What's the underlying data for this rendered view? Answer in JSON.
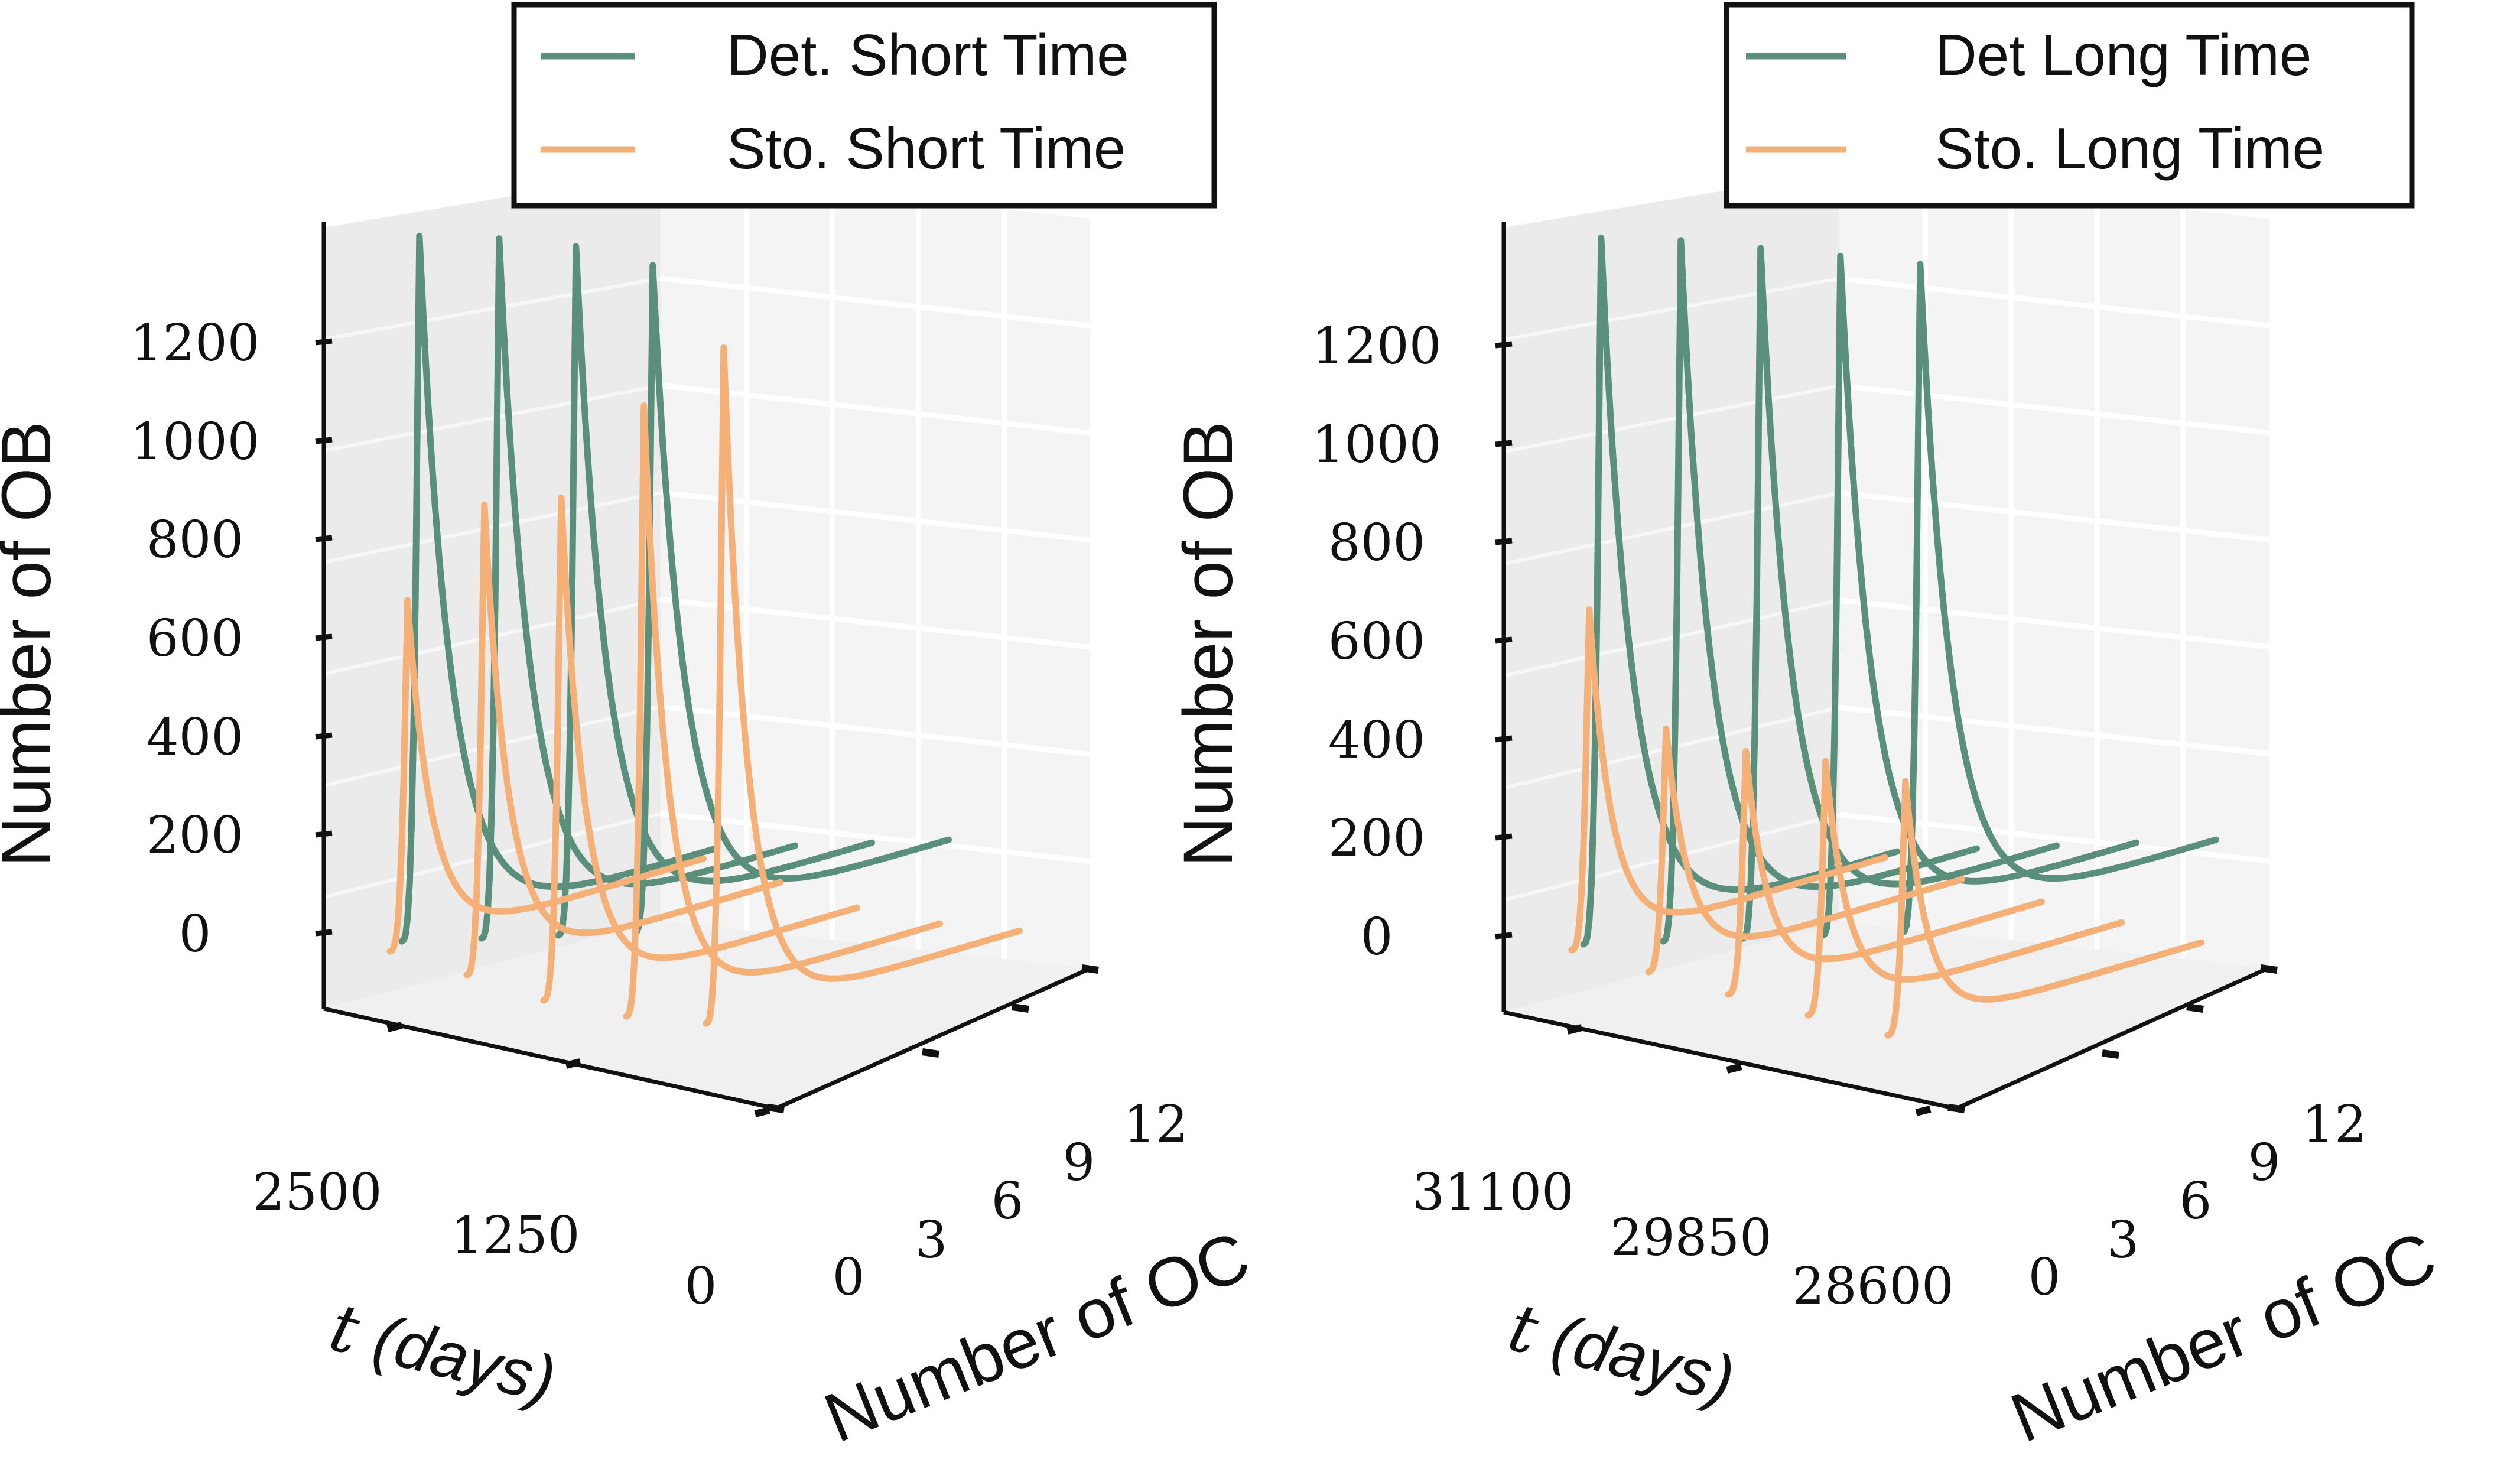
{
  "chart_data": [
    {
      "type": "line3d",
      "title": "",
      "legend": {
        "position": "top-right",
        "entries": [
          {
            "label": "Det. Short Time",
            "color": "#5a8f7b"
          },
          {
            "label": "Sto. Short Time",
            "color": "#f4b076"
          }
        ]
      },
      "zlabel": "Number of OB",
      "zticks": [
        "0",
        "200",
        "400",
        "600",
        "800",
        "1000",
        "1200"
      ],
      "zlim": [
        0,
        1300
      ],
      "xlabel_italic": "t",
      "xlabel_rest": " (days)",
      "xticks": [
        "2500",
        "1250",
        "0"
      ],
      "ylabel": "Number of OC",
      "yticks": [
        "0",
        "3",
        "6",
        "9",
        "12"
      ],
      "series": [
        {
          "name": "Det. Short Time",
          "color": "#5a8f7b",
          "peak_OB": [
            1290,
            1280,
            1260,
            1220
          ]
        },
        {
          "name": "Sto. Short Time",
          "color": "#f4b076",
          "peak_OB": [
            640,
            860,
            920,
            1120,
            1240
          ]
        }
      ]
    },
    {
      "type": "line3d",
      "title": "",
      "legend": {
        "position": "top-right",
        "entries": [
          {
            "label": "Det Long Time",
            "color": "#5a8f7b"
          },
          {
            "label": "Sto. Long Time",
            "color": "#f4b076"
          }
        ]
      },
      "zlabel": "Number of OB",
      "zticks": [
        "0",
        "200",
        "400",
        "600",
        "800",
        "1000",
        "1200"
      ],
      "zlim": [
        0,
        1300
      ],
      "xlabel_italic": "t",
      "xlabel_rest": " (days)",
      "xticks": [
        "31100",
        "29850",
        "28600"
      ],
      "ylabel": "Number of OC",
      "yticks": [
        "0",
        "3",
        "6",
        "9",
        "12"
      ],
      "series": [
        {
          "name": "Det Long Time",
          "color": "#5a8f7b",
          "peak_OB": [
            1290,
            1280,
            1260,
            1240,
            1220
          ]
        },
        {
          "name": "Sto. Long Time",
          "color": "#f4b076",
          "peak_OB": [
            620,
            440,
            440,
            460,
            460
          ]
        }
      ]
    }
  ]
}
